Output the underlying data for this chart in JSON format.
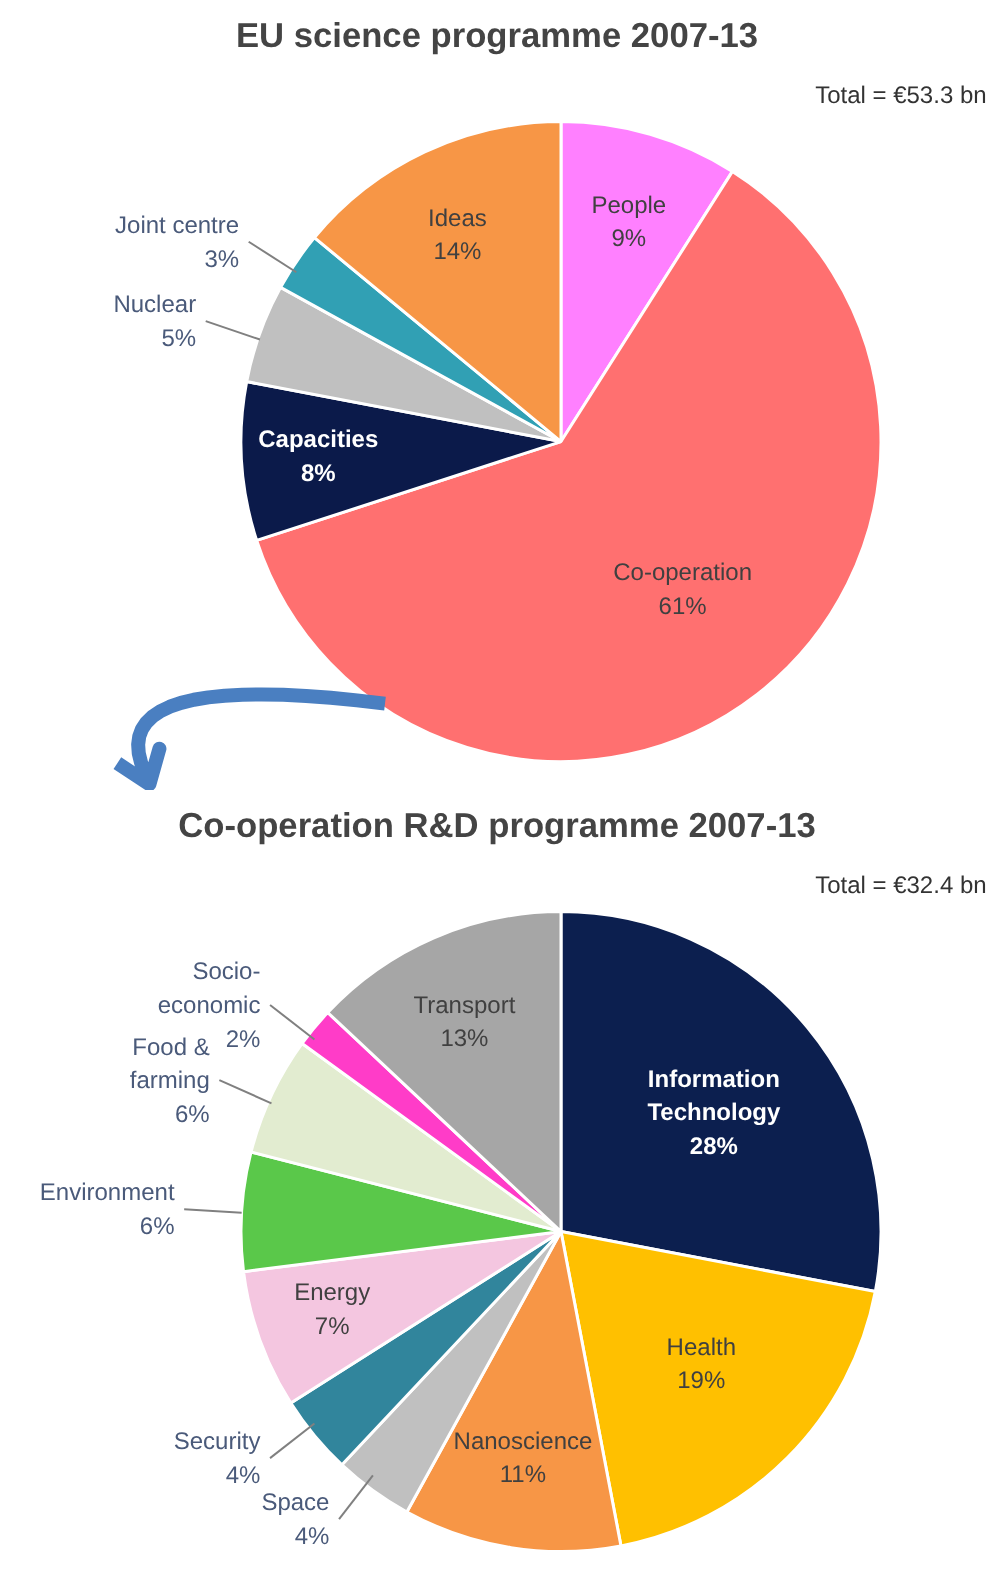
{
  "chart_data": [
    {
      "type": "pie",
      "title": "EU science programme 2007-13",
      "categories": [
        "People",
        "Co-operation",
        "Capacities",
        "Nuclear",
        "Joint centre",
        "Ideas"
      ],
      "values": [
        9,
        61,
        8,
        5,
        3,
        14
      ],
      "value_labels": [
        "9%",
        "61%",
        "8%",
        "5%",
        "3%",
        "14%"
      ],
      "colors": [
        "#ff80ff",
        "#ff7070",
        "#0b1a4a",
        "#c0c0c0",
        "#31a0b4",
        "#f79646"
      ],
      "annotations": [
        "Total = €53.3 bn"
      ]
    },
    {
      "type": "pie",
      "title": "Co-operation R&D programme 2007-13",
      "categories": [
        "Information Technology",
        "Health",
        "Nanoscience",
        "Space",
        "Security",
        "Energy",
        "Environment",
        "Food & farming",
        "Socio-economic",
        "Transport"
      ],
      "values": [
        28,
        19,
        11,
        4,
        4,
        7,
        6,
        6,
        2,
        13
      ],
      "value_labels": [
        "28%",
        "19%",
        "11%",
        "4%",
        "4%",
        "7%",
        "6%",
        "6%",
        "2%",
        "13%"
      ],
      "colors": [
        "#0c1f4f",
        "#ffc000",
        "#f79646",
        "#c0c0c0",
        "#31859c",
        "#f4c6e0",
        "#5ac84a",
        "#e2ecd0",
        "#ff3cc8",
        "#a6a6a6"
      ],
      "annotations": [
        "Total = €32.4 bn"
      ]
    }
  ]
}
